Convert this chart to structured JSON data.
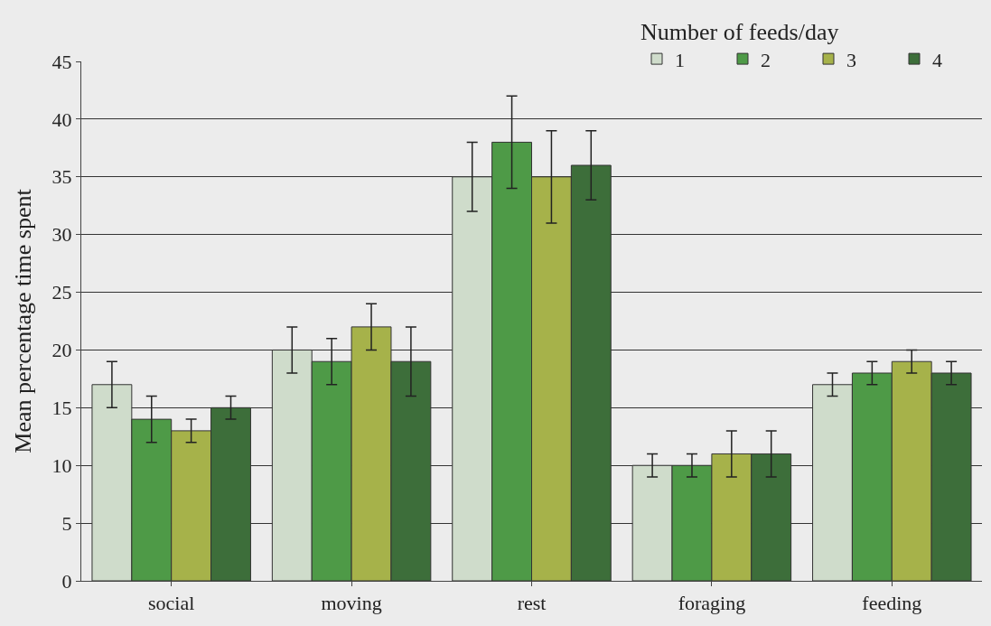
{
  "chart_data": {
    "type": "bar",
    "ylabel": "Mean percentage time spent",
    "legend_title": "Number of feeds/day",
    "categories": [
      "social",
      "moving",
      "rest",
      "foraging",
      "feeding"
    ],
    "series": [
      {
        "name": "1",
        "color": "#cfdccb",
        "values": [
          17,
          20,
          35,
          10,
          17
        ],
        "errors": [
          2,
          2,
          3,
          1,
          1
        ]
      },
      {
        "name": "2",
        "color": "#4e9a47",
        "values": [
          14,
          19,
          38,
          10,
          18
        ],
        "errors": [
          2,
          2,
          4,
          1,
          1
        ]
      },
      {
        "name": "3",
        "color": "#a6b24a",
        "values": [
          13,
          22,
          35,
          11,
          19
        ],
        "errors": [
          1,
          2,
          4,
          2,
          1
        ]
      },
      {
        "name": "4",
        "color": "#3d6e3a",
        "values": [
          15,
          19,
          36,
          11,
          18
        ],
        "errors": [
          1,
          3,
          3,
          2,
          1
        ]
      }
    ],
    "ylim": [
      0,
      45
    ],
    "yticks": [
      0,
      5,
      10,
      15,
      20,
      25,
      30,
      35,
      40,
      45
    ],
    "grid": "y",
    "legend": "top right"
  }
}
